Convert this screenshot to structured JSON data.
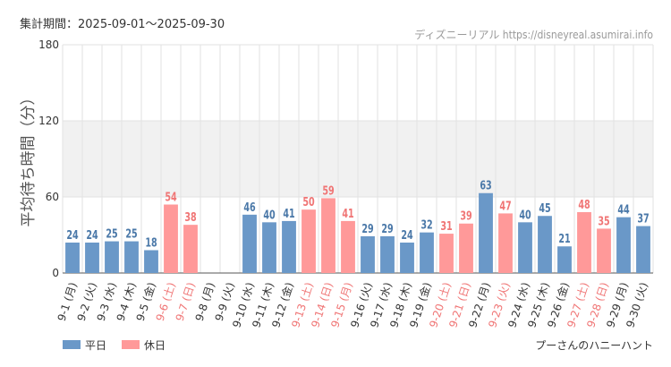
{
  "header": {
    "period_label": "集計期間：2025-09-01～2025-09-30",
    "site_credit": "ディズニーリアル https://disneyreal.asumirai.info"
  },
  "chart_data": {
    "type": "bar",
    "ylabel": "平均待ち時間（分）",
    "ylim": [
      0,
      180
    ],
    "yticks": [
      0,
      60,
      120,
      180
    ],
    "grid": true,
    "shaded_band": [
      60,
      120
    ],
    "legend_position": "bottom-left",
    "attraction_name": "プーさんのハニーハント",
    "categories": [
      "9-1 (月)",
      "9-2 (火)",
      "9-3 (水)",
      "9-4 (木)",
      "9-5 (金)",
      "9-6 (土)",
      "9-7 (日)",
      "9-8 (月)",
      "9-9 (火)",
      "9-10 (水)",
      "9-11 (木)",
      "9-12 (金)",
      "9-13 (土)",
      "9-14 (日)",
      "9-15 (月)",
      "9-16 (火)",
      "9-17 (水)",
      "9-18 (木)",
      "9-19 (金)",
      "9-20 (土)",
      "9-21 (日)",
      "9-22 (月)",
      "9-23 (火)",
      "9-24 (水)",
      "9-25 (木)",
      "9-26 (金)",
      "9-27 (土)",
      "9-28 (日)",
      "9-29 (月)",
      "9-30 (火)"
    ],
    "values": [
      24,
      24,
      25,
      25,
      18,
      54,
      38,
      null,
      null,
      46,
      40,
      41,
      50,
      59,
      41,
      29,
      29,
      24,
      32,
      31,
      39,
      63,
      47,
      40,
      45,
      21,
      48,
      35,
      44,
      37
    ],
    "day_type": [
      "w",
      "w",
      "w",
      "w",
      "w",
      "h",
      "h",
      "w",
      "w",
      "w",
      "w",
      "w",
      "h",
      "h",
      "h",
      "w",
      "w",
      "w",
      "w",
      "h",
      "h",
      "w",
      "h",
      "w",
      "w",
      "w",
      "h",
      "h",
      "w",
      "w"
    ],
    "series": [
      {
        "name": "平日",
        "color": "#6a98c8"
      },
      {
        "name": "休日",
        "color": "#ff9999"
      }
    ],
    "colors": {
      "weekday_bar": "#6a98c8",
      "holiday_bar": "#ff9999",
      "weekday_label": "#4a78a8",
      "holiday_label": "#f07575",
      "band": "#f1f1f1",
      "grid": "#e2e2e2"
    }
  }
}
